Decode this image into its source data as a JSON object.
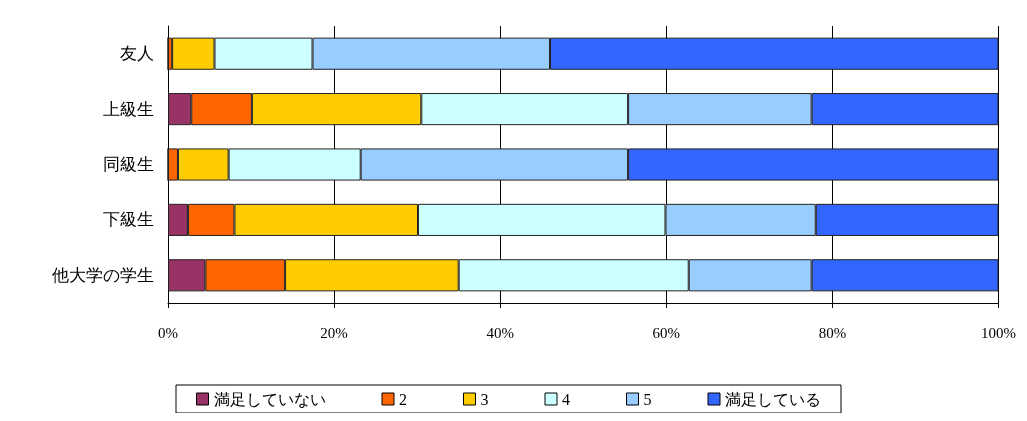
{
  "chart_data": {
    "type": "bar",
    "orientation": "horizontal",
    "stacked": true,
    "categories": [
      "友人",
      "上級生",
      "同級生",
      "下級生",
      "他大学の学生"
    ],
    "series": [
      {
        "name": "満足していない",
        "color": "#993366",
        "values": [
          0,
          2.8,
          0,
          2.4,
          4.5
        ]
      },
      {
        "name": "2",
        "color": "#ff6600",
        "values": [
          0.5,
          7.3,
          1.2,
          5.6,
          9.6
        ]
      },
      {
        "name": "3",
        "color": "#ffcc00",
        "values": [
          5.1,
          20.4,
          6.1,
          22.1,
          20.9
        ]
      },
      {
        "name": "4",
        "color": "#ccffff",
        "values": [
          11.8,
          24.9,
          15.9,
          29.8,
          27.7
        ]
      },
      {
        "name": "5",
        "color": "#99ccff",
        "values": [
          28.6,
          22.1,
          32.2,
          18.1,
          14.8
        ]
      },
      {
        "name": "満足している",
        "color": "#3366ff",
        "values": [
          54.0,
          22.5,
          44.6,
          22.0,
          22.5
        ]
      }
    ],
    "xlim": [
      0,
      100
    ],
    "xticks": [
      {
        "value": 0,
        "label": "0%"
      },
      {
        "value": 20,
        "label": "20%"
      },
      {
        "value": 40,
        "label": "40%"
      },
      {
        "value": 60,
        "label": "60%"
      },
      {
        "value": 80,
        "label": "80%"
      },
      {
        "value": 100,
        "label": "100%"
      }
    ],
    "grid": "x",
    "legend": "bottom"
  }
}
